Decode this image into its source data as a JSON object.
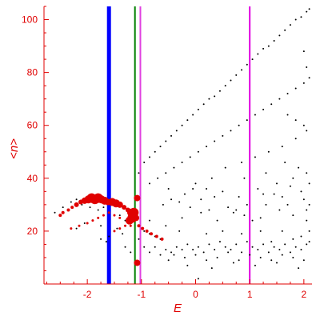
{
  "chart_data": {
    "type": "scatter",
    "title": "",
    "xlabel": "E",
    "ylabel": "<n>",
    "xlim": [
      -2.8,
      2.15
    ],
    "ylim": [
      0,
      105
    ],
    "x_ticks": [
      -2,
      -1,
      0,
      1,
      2
    ],
    "y_ticks": [
      20,
      40,
      60,
      80,
      100
    ],
    "x_tick_labels": [
      "-2",
      "-1",
      "0",
      "1",
      "2"
    ],
    "y_tick_labels": [
      "20",
      "40",
      "60",
      "80",
      "100"
    ],
    "grid": false,
    "legend": "none",
    "colors": {
      "axes": "#e00000",
      "black_points": "#000000",
      "red_points": "#e00000"
    },
    "vertical_lines": [
      {
        "x": -1.6,
        "color": "#0000ff",
        "width": "thick"
      },
      {
        "x": -1.12,
        "color": "#008000",
        "width": "thin"
      },
      {
        "x": -1.02,
        "color": "#e040e0",
        "width": "thin"
      },
      {
        "x": 1.0,
        "color": "#e000e0",
        "width": "thin"
      }
    ],
    "black_series": [
      [
        -2.6,
        27
      ],
      [
        -2.45,
        29
      ],
      [
        -2.3,
        31
      ],
      [
        -2.2,
        32
      ],
      [
        -2.1,
        30
      ],
      [
        -1.95,
        29
      ],
      [
        -1.8,
        28
      ],
      [
        -1.7,
        29
      ],
      [
        -1.55,
        30
      ],
      [
        -1.4,
        26
      ],
      [
        -1.3,
        24
      ],
      [
        -1.2,
        22
      ],
      [
        -2.2,
        21
      ],
      [
        -2.05,
        23
      ],
      [
        -1.9,
        24
      ],
      [
        -1.75,
        22
      ],
      [
        -1.6,
        18
      ],
      [
        -1.45,
        21
      ],
      [
        -1.35,
        19
      ],
      [
        -1.75,
        17
      ],
      [
        -1.65,
        16
      ],
      [
        -1.05,
        17
      ],
      [
        -0.95,
        20
      ],
      [
        -0.85,
        19
      ],
      [
        -0.75,
        18
      ],
      [
        -0.65,
        17
      ],
      [
        -1.3,
        14
      ],
      [
        -1.2,
        12
      ],
      [
        -0.95,
        14
      ],
      [
        -0.85,
        12
      ],
      [
        -0.75,
        14
      ],
      [
        -0.65,
        11
      ],
      [
        -0.55,
        13
      ],
      [
        -0.45,
        12
      ],
      [
        -0.35,
        14
      ],
      [
        -0.25,
        13
      ],
      [
        -0.15,
        15
      ],
      [
        -0.05,
        13
      ],
      [
        0.05,
        14
      ],
      [
        0.15,
        12
      ],
      [
        0.25,
        15
      ],
      [
        0.35,
        13
      ],
      [
        0.45,
        16
      ],
      [
        0.55,
        14
      ],
      [
        0.65,
        13
      ],
      [
        0.75,
        15
      ],
      [
        0.85,
        12
      ],
      [
        0.95,
        16
      ],
      [
        1.05,
        14
      ],
      [
        1.15,
        13
      ],
      [
        1.25,
        15
      ],
      [
        1.35,
        12
      ],
      [
        1.45,
        14
      ],
      [
        1.55,
        13
      ],
      [
        1.65,
        15
      ],
      [
        1.75,
        12
      ],
      [
        1.85,
        14
      ],
      [
        1.95,
        13
      ],
      [
        2.05,
        15
      ],
      [
        -0.5,
        9
      ],
      [
        -0.4,
        11
      ],
      [
        -0.2,
        10
      ],
      [
        0.0,
        11
      ],
      [
        0.2,
        9
      ],
      [
        0.4,
        10
      ],
      [
        0.6,
        12
      ],
      [
        0.8,
        9
      ],
      [
        1.0,
        11
      ],
      [
        1.2,
        10
      ],
      [
        1.4,
        9
      ],
      [
        1.6,
        11
      ],
      [
        1.8,
        10
      ],
      [
        2.0,
        9
      ],
      [
        -0.15,
        7
      ],
      [
        0.3,
        6
      ],
      [
        0.7,
        8
      ],
      [
        1.1,
        7
      ],
      [
        1.5,
        8
      ],
      [
        1.9,
        6
      ],
      [
        0.05,
        2
      ],
      [
        -0.85,
        24
      ],
      [
        -0.55,
        22
      ],
      [
        -0.25,
        25
      ],
      [
        0.1,
        27
      ],
      [
        0.4,
        24
      ],
      [
        0.7,
        27
      ],
      [
        0.9,
        26
      ],
      [
        1.2,
        25
      ],
      [
        1.55,
        28
      ],
      [
        1.8,
        26
      ],
      [
        2.05,
        24
      ],
      [
        -0.5,
        36
      ],
      [
        -0.2,
        34
      ],
      [
        0.2,
        36
      ],
      [
        0.5,
        35
      ],
      [
        0.8,
        33
      ],
      [
        1.15,
        36
      ],
      [
        1.45,
        34
      ],
      [
        1.75,
        37
      ],
      [
        2.0,
        32
      ],
      [
        -1.05,
        42
      ],
      [
        -0.95,
        46
      ],
      [
        -0.85,
        48
      ],
      [
        -0.75,
        50
      ],
      [
        -0.65,
        52
      ],
      [
        -0.55,
        54
      ],
      [
        -0.45,
        56
      ],
      [
        -0.35,
        58
      ],
      [
        -0.25,
        60
      ],
      [
        -0.15,
        62
      ],
      [
        -0.05,
        64
      ],
      [
        0.05,
        66
      ],
      [
        0.15,
        68
      ],
      [
        0.25,
        70
      ],
      [
        0.35,
        71
      ],
      [
        0.45,
        73
      ],
      [
        0.55,
        75
      ],
      [
        0.65,
        77
      ],
      [
        0.75,
        79
      ],
      [
        0.85,
        81
      ],
      [
        0.95,
        83
      ],
      [
        1.05,
        85
      ],
      [
        1.15,
        87
      ],
      [
        1.25,
        89
      ],
      [
        1.35,
        90
      ],
      [
        1.45,
        92
      ],
      [
        1.55,
        94
      ],
      [
        1.65,
        96
      ],
      [
        1.75,
        98
      ],
      [
        1.85,
        100
      ],
      [
        1.95,
        101
      ],
      [
        2.05,
        103
      ],
      [
        2.1,
        104
      ],
      [
        -0.85,
        38
      ],
      [
        -0.7,
        40
      ],
      [
        -0.55,
        42
      ],
      [
        -0.4,
        44
      ],
      [
        -0.25,
        46
      ],
      [
        -0.1,
        48
      ],
      [
        0.05,
        50
      ],
      [
        0.2,
        52
      ],
      [
        0.35,
        54
      ],
      [
        0.5,
        56
      ],
      [
        0.65,
        58
      ],
      [
        0.8,
        60
      ],
      [
        0.95,
        62
      ],
      [
        1.1,
        64
      ],
      [
        1.25,
        66
      ],
      [
        1.4,
        68
      ],
      [
        1.55,
        70
      ],
      [
        1.7,
        72
      ],
      [
        1.85,
        74
      ],
      [
        2.0,
        76
      ],
      [
        2.1,
        78
      ],
      [
        2.05,
        82
      ],
      [
        2.0,
        88
      ],
      [
        -0.6,
        30
      ],
      [
        -0.45,
        32
      ],
      [
        -0.3,
        31
      ],
      [
        0.0,
        38
      ],
      [
        0.3,
        40
      ],
      [
        0.55,
        44
      ],
      [
        0.85,
        46
      ],
      [
        1.1,
        48
      ],
      [
        1.35,
        50
      ],
      [
        1.6,
        52
      ],
      [
        1.85,
        55
      ],
      [
        2.05,
        58
      ],
      [
        1.7,
        64
      ],
      [
        1.85,
        62
      ],
      [
        2.0,
        60
      ],
      [
        1.65,
        46
      ],
      [
        1.9,
        44
      ],
      [
        2.05,
        42
      ],
      [
        1.8,
        40
      ],
      [
        2.1,
        38
      ],
      [
        0.9,
        40
      ],
      [
        1.3,
        42
      ],
      [
        1.5,
        38
      ],
      [
        1.95,
        35
      ],
      [
        2.1,
        30
      ],
      [
        1.7,
        30
      ],
      [
        1.3,
        30
      ],
      [
        0.95,
        30
      ],
      [
        0.6,
        29
      ],
      [
        0.25,
        28
      ],
      [
        -0.1,
        29
      ],
      [
        1.95,
        18
      ],
      [
        2.1,
        20
      ],
      [
        1.6,
        20
      ],
      [
        1.2,
        20
      ],
      [
        0.85,
        19
      ],
      [
        0.5,
        20
      ],
      [
        0.2,
        19
      ],
      [
        -0.3,
        20
      ],
      [
        1.4,
        16
      ],
      [
        1.8,
        17
      ],
      [
        2.1,
        16
      ],
      [
        0.75,
        28
      ],
      [
        1.05,
        24
      ],
      [
        0.1,
        32
      ],
      [
        -0.05,
        36
      ],
      [
        0.35,
        33
      ],
      [
        1.6,
        33
      ],
      [
        1.25,
        34
      ],
      [
        2.05,
        28
      ]
    ],
    "red_series": [
      [
        -2.5,
        26,
        2
      ],
      [
        -2.45,
        27,
        2
      ],
      [
        -2.35,
        28,
        2
      ],
      [
        -2.28,
        29,
        2
      ],
      [
        -2.2,
        30,
        3
      ],
      [
        -2.12,
        31,
        3
      ],
      [
        -2.05,
        31.5,
        4
      ],
      [
        -1.98,
        32,
        5
      ],
      [
        -1.92,
        32.5,
        6
      ],
      [
        -1.86,
        32,
        6
      ],
      [
        -1.8,
        32.5,
        6
      ],
      [
        -1.74,
        32,
        5
      ],
      [
        -1.68,
        31.5,
        5
      ],
      [
        -1.62,
        31,
        4
      ],
      [
        -1.54,
        31,
        5
      ],
      [
        -1.47,
        30.5,
        5
      ],
      [
        -1.4,
        30,
        4
      ],
      [
        -1.32,
        29,
        3
      ],
      [
        -1.25,
        28,
        3
      ],
      [
        -1.19,
        27,
        5
      ],
      [
        -1.14,
        27,
        6
      ],
      [
        -1.17,
        25,
        6
      ],
      [
        -1.22,
        24,
        5
      ],
      [
        -1.1,
        25,
        4
      ],
      [
        -1.05,
        22,
        2
      ],
      [
        -0.98,
        21,
        2
      ],
      [
        -0.9,
        20,
        2
      ],
      [
        -0.82,
        19,
        2
      ],
      [
        -0.72,
        18,
        2
      ],
      [
        -0.62,
        17,
        2
      ],
      [
        -2.3,
        21,
        1.5
      ],
      [
        -2.15,
        22,
        1.5
      ],
      [
        -2.0,
        23,
        1.5
      ],
      [
        -1.9,
        24,
        1.5
      ],
      [
        -1.8,
        25,
        1.5
      ],
      [
        -1.7,
        26,
        1.5
      ],
      [
        -1.6,
        27,
        1.5
      ],
      [
        -1.5,
        26,
        1.5
      ],
      [
        -1.4,
        25,
        1.5
      ],
      [
        -1.5,
        20,
        1.5
      ],
      [
        -1.4,
        21,
        1.5
      ],
      [
        -1.3,
        22,
        1.5
      ],
      [
        -1.2,
        22,
        1.5
      ],
      [
        -1.08,
        32.5,
        4
      ],
      [
        -1.08,
        8,
        4
      ]
    ]
  }
}
